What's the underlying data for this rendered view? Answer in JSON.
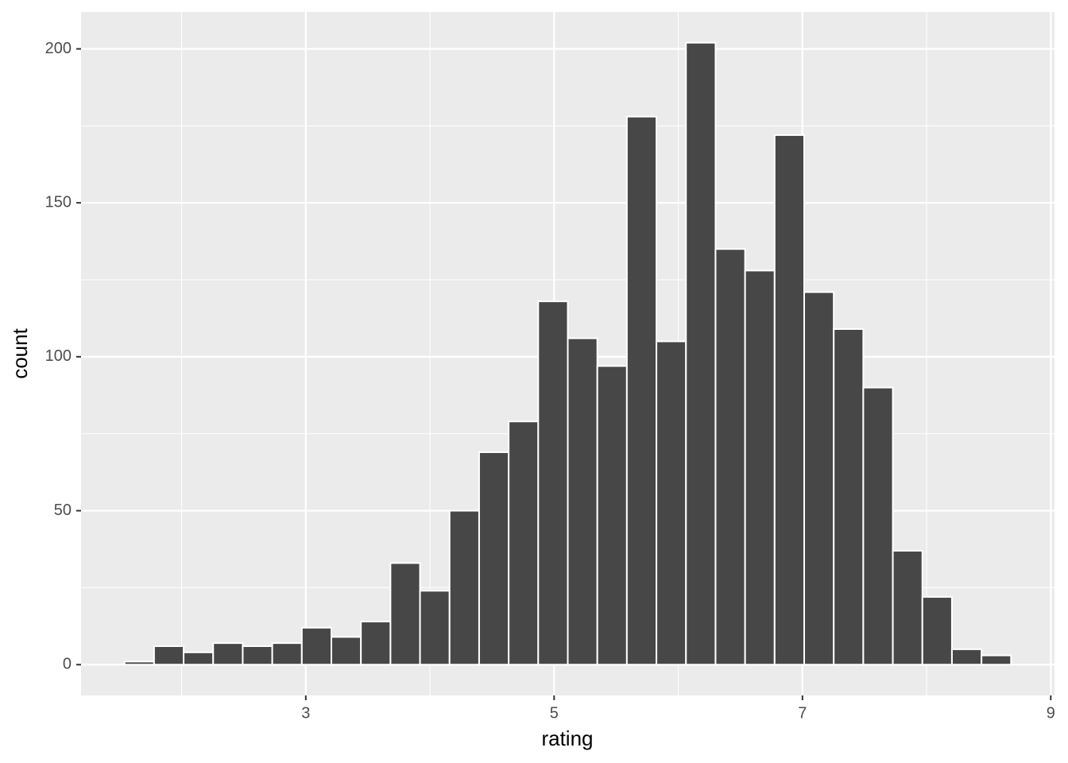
{
  "chart_data": {
    "type": "histogram",
    "x_label": "rating",
    "y_label": "count",
    "bins": [
      1.54,
      1.778,
      2.016,
      2.254,
      2.492,
      2.73,
      2.968,
      3.206,
      3.444,
      3.682,
      3.92,
      4.158,
      4.396,
      4.634,
      4.872,
      5.11,
      5.348,
      5.586,
      5.824,
      6.062,
      6.3,
      6.538,
      6.776,
      7.014,
      7.252,
      7.49,
      7.728,
      7.966,
      8.204,
      8.442,
      8.68
    ],
    "values": [
      1,
      6,
      4,
      7,
      6,
      7,
      12,
      9,
      14,
      33,
      24,
      50,
      69,
      79,
      118,
      106,
      97,
      178,
      105,
      202,
      135,
      128,
      172,
      121,
      109,
      90,
      37,
      22,
      5,
      3
    ],
    "color": "#474747",
    "xlim": [
      1.19,
      9.03
    ],
    "ylim": [
      -10,
      212
    ],
    "xticks": [
      3,
      5,
      7,
      9
    ],
    "yticks": [
      0,
      50,
      100,
      150,
      200
    ],
    "xminorticks": [
      2,
      4,
      6,
      8
    ],
    "yminorticks": [
      25,
      75,
      125,
      175
    ],
    "grid": true
  }
}
